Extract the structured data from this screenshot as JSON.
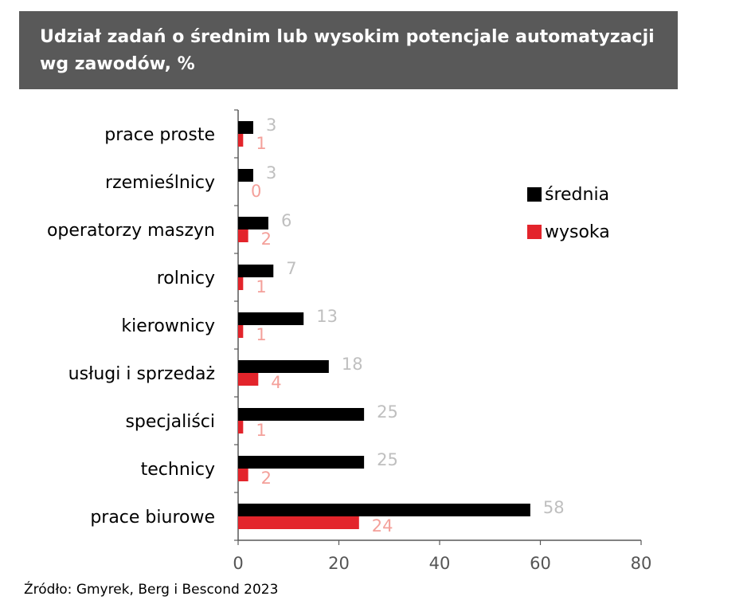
{
  "title": "Udział zadań o średnim lub wysokim potencjale automatyzacji wg zawodów, %",
  "source": "Źródło: Gmyrek, Berg i Bescond 2023",
  "colors": {
    "title_bg": "#595959",
    "srednia": "#000000",
    "wysoka": "#e3242b",
    "srednia_label": "#bfbfbf",
    "wysoka_label": "#f4a09a",
    "axis": "#595959"
  },
  "chart_data": {
    "type": "bar",
    "orientation": "horizontal",
    "categories": [
      "prace proste",
      "rzemieślnicy",
      "operatorzy maszyn",
      "rolnicy",
      "kierownicy",
      "usługi i sprzedaż",
      "specjaliści",
      "technicy",
      "prace biurowe"
    ],
    "series": [
      {
        "name": "średnia",
        "values": [
          3,
          3,
          6,
          7,
          13,
          18,
          25,
          25,
          58
        ]
      },
      {
        "name": "wysoka",
        "values": [
          1,
          0,
          2,
          1,
          1,
          4,
          1,
          2,
          24
        ]
      }
    ],
    "xlim": [
      0,
      80
    ],
    "xticks": [
      0,
      20,
      40,
      60,
      80
    ],
    "grid": false,
    "legend": "right"
  }
}
